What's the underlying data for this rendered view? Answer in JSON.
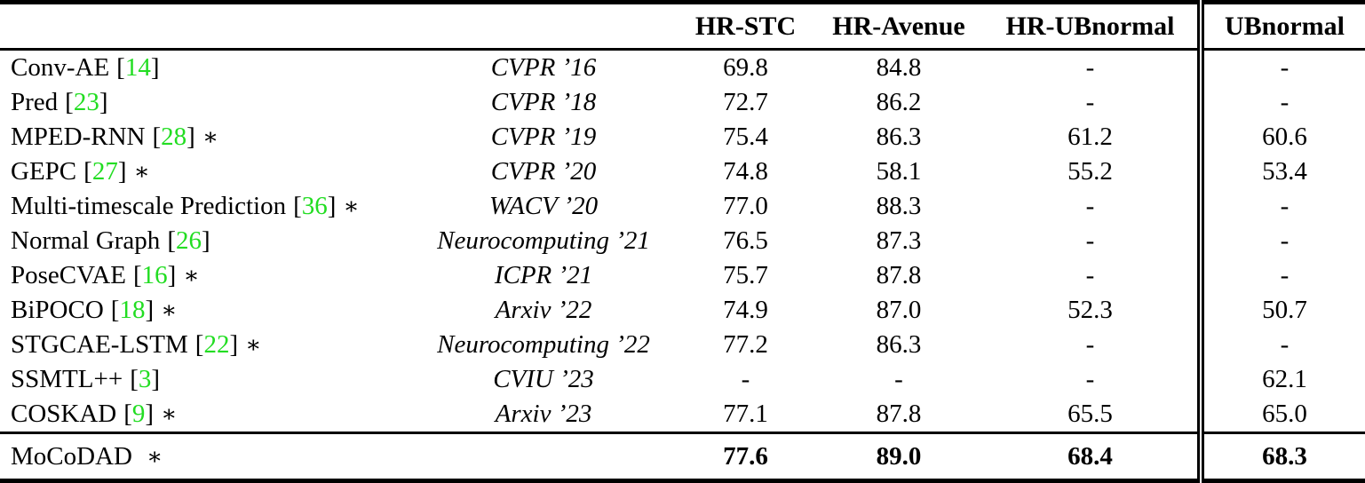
{
  "colors": {
    "citation": "#22dd22",
    "rule": "#000000",
    "background": "#ffffff",
    "text": "#000000"
  },
  "header": {
    "method": "",
    "venue": "",
    "columns": [
      "HR-STC",
      "HR-Avenue",
      "HR-UBnormal",
      "UBnormal"
    ]
  },
  "rows": [
    {
      "method": "Conv-AE",
      "open": "[",
      "cite": "14",
      "close": "]",
      "star": "",
      "venue": "CVPR ’16",
      "values": [
        "69.8",
        "84.8",
        "-",
        "-"
      ]
    },
    {
      "method": "Pred",
      "open": "[",
      "cite": "23",
      "close": "]",
      "star": "",
      "venue": "CVPR ’18",
      "values": [
        "72.7",
        "86.2",
        "-",
        "-"
      ]
    },
    {
      "method": "MPED-RNN",
      "open": "[",
      "cite": "28",
      "close": "]",
      "star": "∗",
      "venue": "CVPR ’19",
      "values": [
        "75.4",
        "86.3",
        "61.2",
        "60.6"
      ]
    },
    {
      "method": "GEPC",
      "open": "[",
      "cite": "27",
      "close": "]",
      "star": "∗",
      "venue": "CVPR ’20",
      "values": [
        "74.8",
        "58.1",
        "55.2",
        "53.4"
      ]
    },
    {
      "method": "Multi-timescale Prediction",
      "open": "[",
      "cite": "36",
      "close": "]",
      "star": "∗",
      "venue": "WACV ’20",
      "values": [
        "77.0",
        "88.3",
        "-",
        "-"
      ]
    },
    {
      "method": "Normal Graph",
      "open": "[",
      "cite": "26",
      "close": "]",
      "star": "",
      "venue": "Neurocomputing ’21",
      "values": [
        "76.5",
        "87.3",
        "-",
        "-"
      ]
    },
    {
      "method": "PoseCVAE",
      "open": "[",
      "cite": "16",
      "close": "]",
      "star": "∗",
      "venue": "ICPR ’21",
      "values": [
        "75.7",
        "87.8",
        "-",
        "-"
      ]
    },
    {
      "method": "BiPOCO",
      "open": "[",
      "cite": "18",
      "close": "]",
      "star": "∗",
      "venue": "Arxiv ’22",
      "values": [
        "74.9",
        "87.0",
        "52.3",
        "50.7"
      ]
    },
    {
      "method": "STGCAE-LSTM",
      "open": "[",
      "cite": "22",
      "close": "]",
      "star": "∗",
      "venue": "Neurocomputing ’22",
      "values": [
        "77.2",
        "86.3",
        "-",
        "-"
      ]
    },
    {
      "method": "SSMTL++",
      "open": "[",
      "cite": "3",
      "close": "]",
      "star": "",
      "venue": "CVIU ’23",
      "values": [
        "-",
        "-",
        "-",
        "62.1"
      ]
    },
    {
      "method": "COSKAD",
      "open": "[",
      "cite": "9",
      "close": "]",
      "star": "∗",
      "venue": "Arxiv ’23",
      "values": [
        "77.1",
        "87.8",
        "65.5",
        "65.0"
      ]
    },
    {
      "method": "MoCoDAD",
      "open": "",
      "cite": "",
      "close": "",
      "star": "∗",
      "venue": "",
      "values": [
        "77.6",
        "89.0",
        "68.4",
        "68.3"
      ]
    }
  ]
}
